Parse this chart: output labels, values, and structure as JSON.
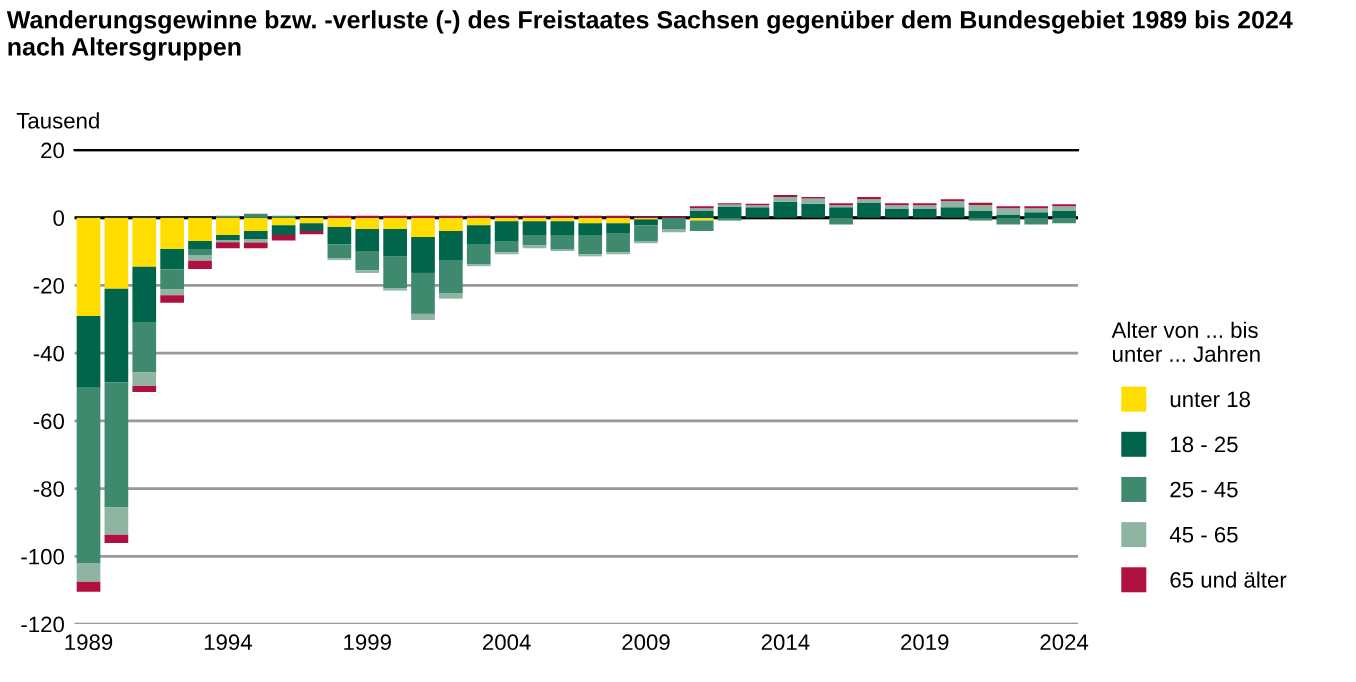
{
  "chart_data": {
    "type": "bar",
    "stacked": true,
    "title": "Wanderungsgewinne bzw. -verluste (-) des Freistaates Sachsen gegenüber dem Bundesgebiet 1989 bis 2024\nnach Altersgruppen",
    "ylabel": "Tausend",
    "legend_title": "Alter von ... bis\nunter ... Jahren",
    "legend": "right",
    "categories": [
      "1989",
      null,
      null,
      null,
      null,
      "1994",
      null,
      null,
      null,
      null,
      "1999",
      null,
      null,
      null,
      null,
      "2004",
      null,
      null,
      null,
      null,
      "2009",
      null,
      null,
      null,
      null,
      "2014",
      null,
      null,
      null,
      null,
      "2019",
      null,
      null,
      null,
      null,
      "2024"
    ],
    "ylim": [
      -120,
      20
    ],
    "yticks": [
      -120,
      -100,
      -80,
      -60,
      -40,
      -20,
      0,
      20
    ],
    "grid": "y",
    "ref_lines": [
      {
        "axis": "y",
        "value": 0,
        "color": "#000000"
      }
    ],
    "series": [
      {
        "name": "unter 18",
        "color": "#ffdd00",
        "values": [
          -29,
          -21,
          -14.5,
          -9.2,
          -6.9,
          -5.1,
          -3.9,
          -2.2,
          -1.6,
          -2.7,
          -3.3,
          -3.3,
          -5.7,
          -3.9,
          -2.2,
          -1,
          -1,
          -1,
          -1.6,
          -1.6,
          -0.5,
          0,
          -0.8,
          0,
          0,
          0,
          0,
          0,
          0,
          0,
          0,
          0,
          0,
          0,
          0,
          0
        ]
      },
      {
        "name": "18 - 25",
        "color": "#00654a",
        "values": [
          -21,
          -27.6,
          -16.5,
          -6,
          -2.3,
          -1.6,
          -2.4,
          -2.9,
          -2.3,
          -5.1,
          -6.5,
          -8.2,
          -10.6,
          -8.8,
          -5.8,
          -5.9,
          -4.1,
          -4.1,
          -3.5,
          -2.9,
          -1.7,
          0,
          2,
          3.3,
          3.1,
          4.7,
          4.1,
          3.1,
          4.5,
          2.7,
          2.7,
          3.1,
          2,
          0.8,
          1.6,
          2
        ]
      },
      {
        "name": "25 - 45",
        "color": "#3f8a6e",
        "values": [
          -52,
          -37,
          -14.7,
          -6,
          -1.8,
          0.6,
          1.2,
          0.6,
          0,
          -4.2,
          -5.7,
          -9.4,
          -12.1,
          -9.7,
          -5.7,
          -3.3,
          -3.1,
          -4.1,
          -5.7,
          -5.7,
          -4.7,
          -3.3,
          -3.1,
          -0.8,
          0,
          0,
          0,
          -2,
          0,
          0,
          0,
          0,
          -0.8,
          -2,
          -2,
          -1.6
        ]
      },
      {
        "name": "45 - 65",
        "color": "#8fb5a2",
        "values": [
          -5.5,
          -8,
          -4,
          -1.7,
          -1.7,
          -0.5,
          -1,
          0,
          0,
          -0.5,
          -0.8,
          -0.6,
          -1.8,
          -1.5,
          -0.6,
          -0.6,
          -0.8,
          -0.6,
          -0.6,
          -0.6,
          -0.6,
          -1,
          0.8,
          0.6,
          0.6,
          1.4,
          1.6,
          0.6,
          1,
          1,
          1,
          1.8,
          1.8,
          2,
          1.2,
          1.4
        ]
      },
      {
        "name": "65 und älter",
        "color": "#b0103f",
        "values": [
          -3,
          -2.5,
          -1.8,
          -2.2,
          -2.4,
          -1.8,
          -1.7,
          -1.6,
          -1,
          0.6,
          0.6,
          0.6,
          0.6,
          0.6,
          0.6,
          0.6,
          0.6,
          0.6,
          0.6,
          0.6,
          0.4,
          0.4,
          0.6,
          0.4,
          0.4,
          0.6,
          0.4,
          0.6,
          0.6,
          0.6,
          0.6,
          0.6,
          0.6,
          0.6,
          0.6,
          0.6
        ]
      }
    ]
  }
}
